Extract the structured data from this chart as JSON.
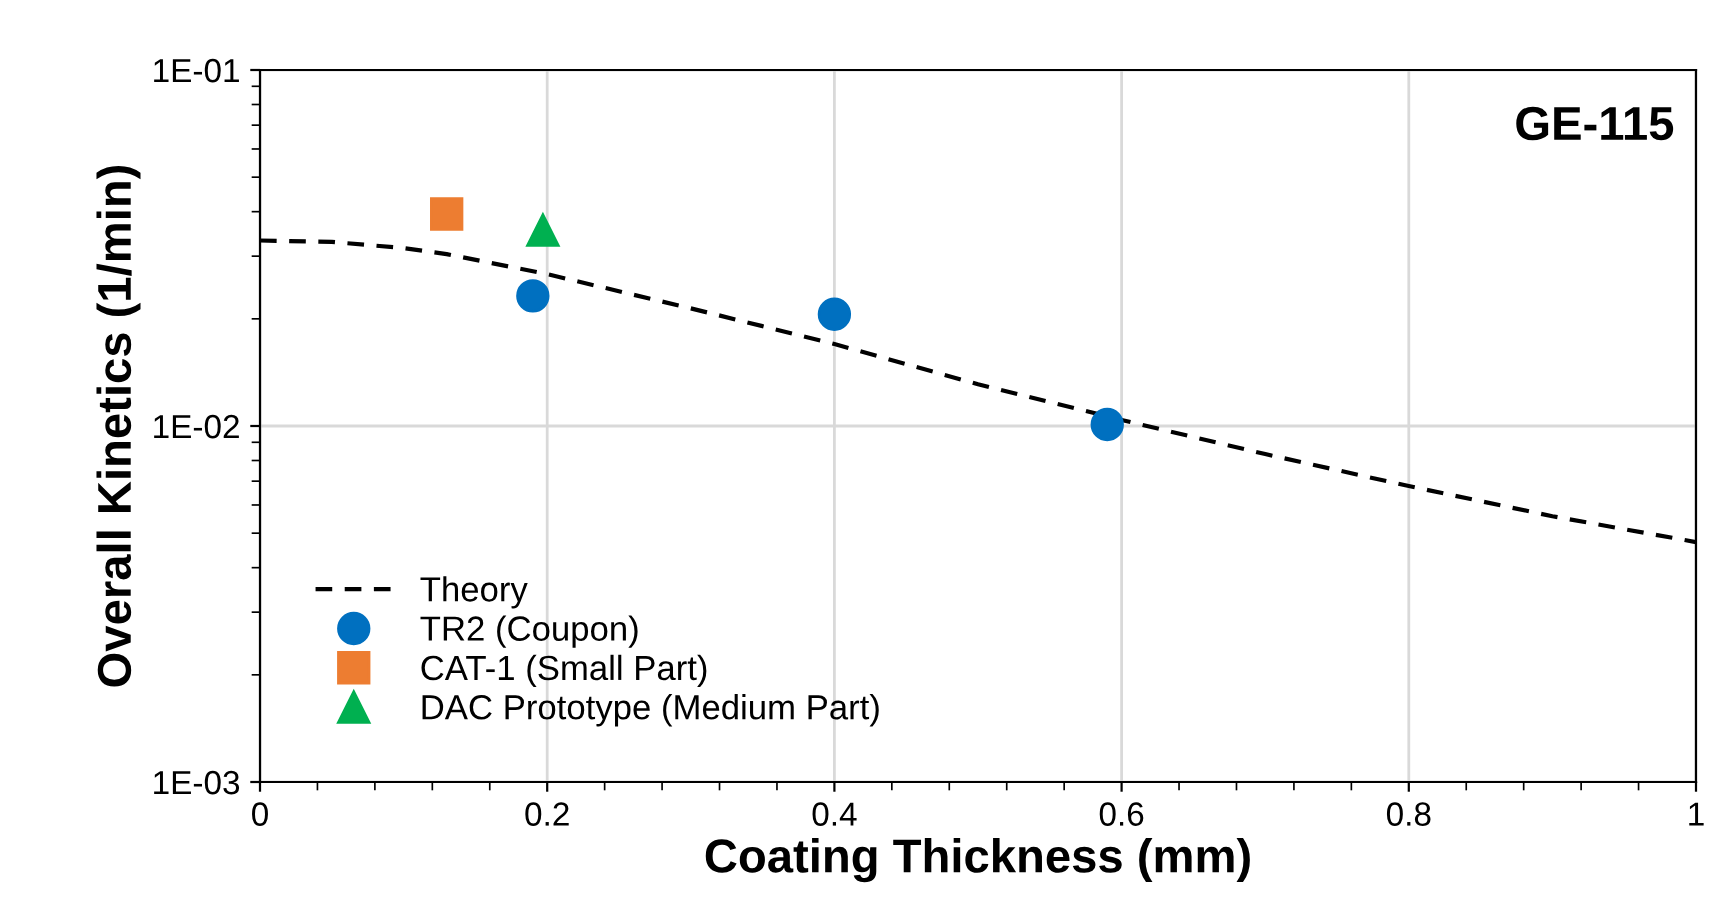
{
  "chart_data": {
    "type": "scatter",
    "xlabel": "Coating Thickness (mm)",
    "ylabel": "Overall Kinetics (1/min)",
    "annotations": [
      "GE-115"
    ],
    "log": "y",
    "grid": true,
    "legend": "bottom left",
    "xlim": [
      0,
      1
    ],
    "xticks": [
      0,
      0.2,
      0.4,
      0.6,
      0.8,
      1
    ],
    "ylim": [
      0.001,
      0.1
    ],
    "yticks": [
      {
        "value": 0.001,
        "label": "1E-03"
      },
      {
        "value": 0.01,
        "label": "1E-02"
      },
      {
        "value": 0.1,
        "label": "1E-01"
      }
    ],
    "series": [
      {
        "name": "Theory",
        "type": "line",
        "line_style": "dashed",
        "marker": "none",
        "color": "#000000",
        "x": [
          0,
          0.05,
          0.1,
          0.13,
          0.2,
          0.3,
          0.4,
          0.5,
          0.6,
          0.7,
          0.8,
          0.9,
          1.0
        ],
        "values": [
          0.0332,
          0.0329,
          0.0316,
          0.0304,
          0.0267,
          0.0214,
          0.017,
          0.0131,
          0.0104,
          0.00834,
          0.00678,
          0.00558,
          0.00472
        ]
      },
      {
        "name": "TR2 (Coupon)",
        "marker": "circle",
        "color": "#0070c0",
        "x": [
          0.19,
          0.4,
          0.59
        ],
        "values": [
          0.0232,
          0.0206,
          0.0101
        ]
      },
      {
        "name": "CAT-1 (Small Part)",
        "marker": "square",
        "color": "#ed7d31",
        "x": [
          0.13
        ],
        "values": [
          0.0394
        ]
      },
      {
        "name": "DAC Prototype (Medium Part)",
        "marker": "triangle",
        "color": "#00b050",
        "x": [
          0.197
        ],
        "values": [
          0.0355
        ]
      }
    ]
  }
}
